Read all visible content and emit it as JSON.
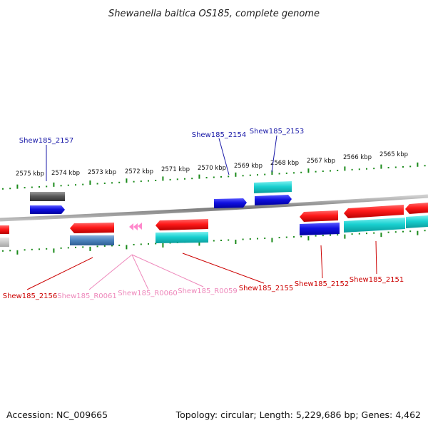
{
  "title": "Shewanella baltica OS185, complete genome",
  "footer": {
    "accession": "Accession: NC_009665",
    "topology": "Topology: circular; Length: 5,229,686 bp; Genes: 4,462"
  },
  "colors": {
    "forward_cds": "#ff1a1a",
    "reverse_cds": "#1010e0",
    "cyan_feature": "#19d0d0",
    "steel_feature": "#4f86c0",
    "gray_feature": "#5a5a5a",
    "rna": "#ff88cc",
    "tick_green": "#1a8a1a",
    "backbone": "#888888",
    "label_blue": "#1a1aa8",
    "label_red": "#cc0000",
    "label_pink": "#ee88bb"
  },
  "kbp_ticks": [
    {
      "label": "2575 kbp"
    },
    {
      "label": "2574 kbp"
    },
    {
      "label": "2573 kbp"
    },
    {
      "label": "2572 kbp"
    },
    {
      "label": "2571 kbp"
    },
    {
      "label": "2570 kbp"
    },
    {
      "label": "2569 kbp"
    },
    {
      "label": "2568 kbp"
    },
    {
      "label": "2567 kbp"
    },
    {
      "label": "2566 kbp"
    },
    {
      "label": "2565 kbp"
    }
  ],
  "gene_labels": [
    {
      "name": "Shew185_2157",
      "color": "blue"
    },
    {
      "name": "Shew185_2154",
      "color": "blue"
    },
    {
      "name": "Shew185_2153",
      "color": "blue"
    },
    {
      "name": "Shew185_2156",
      "color": "red"
    },
    {
      "name": "Shew185_R0061",
      "color": "pink"
    },
    {
      "name": "Shew185_R0060",
      "color": "pink"
    },
    {
      "name": "Shew185_R0059",
      "color": "pink"
    },
    {
      "name": "Shew185_2155",
      "color": "red"
    },
    {
      "name": "Shew185_2152",
      "color": "red"
    },
    {
      "name": "Shew185_2151",
      "color": "red"
    }
  ]
}
